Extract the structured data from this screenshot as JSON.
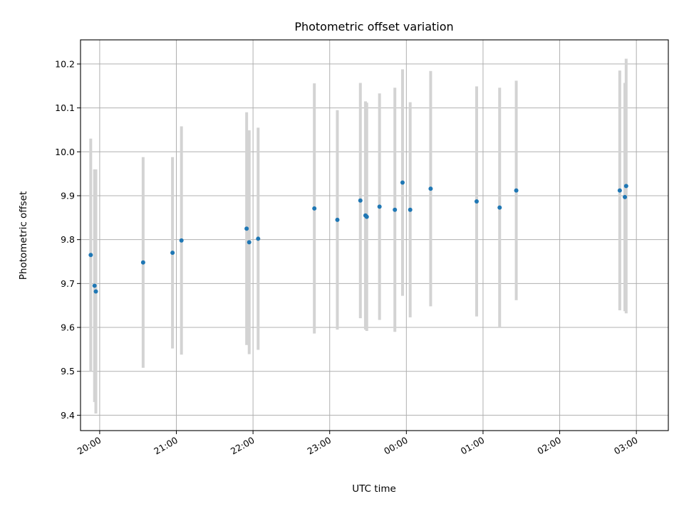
{
  "chart_data": {
    "type": "scatter",
    "title": "Photometric offset variation",
    "xlabel": "UTC time",
    "ylabel": "Photometric offset",
    "grid": true,
    "x_axis_type": "time",
    "xlim": [
      "19:45",
      "03:25"
    ],
    "ylim": [
      9.365,
      10.255
    ],
    "x_ticks": [
      "20:00",
      "21:00",
      "22:00",
      "23:00",
      "00:00",
      "01:00",
      "02:00",
      "03:00"
    ],
    "y_ticks": [
      "9.4",
      "9.5",
      "9.6",
      "9.7",
      "9.8",
      "9.9",
      "10.0",
      "10.1",
      "10.2"
    ],
    "colors": {
      "point": "#1f77b4",
      "errorbar": "#d3d3d3",
      "grid": "#b0b0b0"
    },
    "series": [
      {
        "points": [
          {
            "x": "19:53",
            "y": 9.765,
            "err": 0.265
          },
          {
            "x": "19:56",
            "y": 9.695,
            "err": 0.265
          },
          {
            "x": "19:57",
            "y": 9.682,
            "err": 0.278
          },
          {
            "x": "20:34",
            "y": 9.748,
            "err": 0.24
          },
          {
            "x": "20:57",
            "y": 9.77,
            "err": 0.218
          },
          {
            "x": "21:04",
            "y": 9.798,
            "err": 0.26
          },
          {
            "x": "21:55",
            "y": 9.825,
            "err": 0.265
          },
          {
            "x": "21:57",
            "y": 9.794,
            "err": 0.255
          },
          {
            "x": "22:04",
            "y": 9.802,
            "err": 0.253
          },
          {
            "x": "22:48",
            "y": 9.871,
            "err": 0.285
          },
          {
            "x": "23:06",
            "y": 9.845,
            "err": 0.25
          },
          {
            "x": "23:24",
            "y": 9.889,
            "err": 0.268
          },
          {
            "x": "23:28",
            "y": 9.855,
            "err": 0.26
          },
          {
            "x": "23:29",
            "y": 9.852,
            "err": 0.26
          },
          {
            "x": "23:39",
            "y": 9.875,
            "err": 0.258
          },
          {
            "x": "23:51",
            "y": 9.868,
            "err": 0.278
          },
          {
            "x": "23:57",
            "y": 9.93,
            "err": 0.258
          },
          {
            "x": "00:03",
            "y": 9.868,
            "err": 0.245
          },
          {
            "x": "00:19",
            "y": 9.916,
            "err": 0.268
          },
          {
            "x": "00:55",
            "y": 9.887,
            "err": 0.262
          },
          {
            "x": "01:13",
            "y": 9.873,
            "err": 0.273
          },
          {
            "x": "01:26",
            "y": 9.912,
            "err": 0.25
          },
          {
            "x": "02:47",
            "y": 9.912,
            "err": 0.273
          },
          {
            "x": "02:51",
            "y": 9.897,
            "err": 0.26
          },
          {
            "x": "02:52",
            "y": 9.922,
            "err": 0.29
          }
        ]
      }
    ]
  }
}
